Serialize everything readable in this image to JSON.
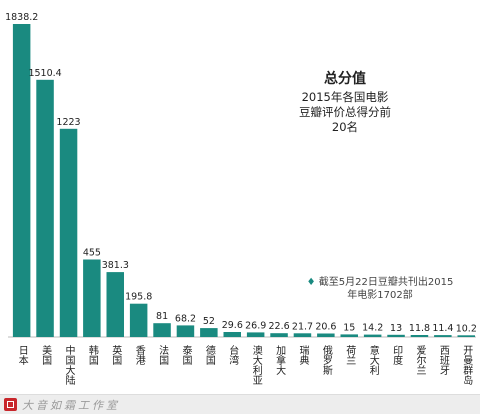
{
  "chart_data": {
    "type": "bar",
    "title": "总分值",
    "subtitle_lines": [
      "2015年各国电影",
      "豆瓣评价总得分前",
      "20名"
    ],
    "categories": [
      "日本",
      "美国",
      "中国大陆",
      "韩国",
      "英国",
      "香港",
      "法国",
      "泰国",
      "德国",
      "台湾",
      "澳大利亚",
      "加拿大",
      "瑞典",
      "俄罗斯",
      "荷兰",
      "意大利",
      "印度",
      "爱尔兰",
      "西班牙",
      "开曼群岛"
    ],
    "values": [
      1838.2,
      1510.4,
      1223,
      455,
      381.3,
      195.8,
      81,
      68.2,
      52,
      29.6,
      26.9,
      22.6,
      21.7,
      20.6,
      15,
      14.2,
      13,
      11.8,
      11.4,
      10.2
    ],
    "value_labels": [
      "1838.2",
      "1510.4",
      "1223",
      "455",
      "381.3",
      "195.8",
      "81",
      "68.2",
      "52",
      "29.6",
      "26.9",
      "22.6",
      "21.7",
      "20.6",
      "15",
      "14.2",
      "13",
      "11.8",
      "11.4",
      "10.2"
    ],
    "ylim": [
      0,
      1838.2
    ],
    "bar_color": "#1a8a80",
    "grid": false,
    "legend": "none"
  },
  "note": {
    "marker": "♦",
    "line1": "截至5月22日豆瓣共刊出2015",
    "line2": "年电影1702部"
  },
  "footer": {
    "brand": "大音如霜工作室",
    "seal_color": "#c8262b"
  }
}
